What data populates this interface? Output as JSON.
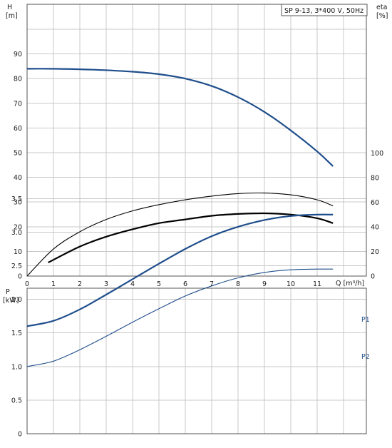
{
  "chart_data": [
    {
      "type": "line",
      "title": "SP 9-13, 3*400 V, 50Hz",
      "xlabel": "Q [m³/h]",
      "xlim": [
        0,
        12
      ],
      "x_ticks": [
        0,
        1,
        2,
        3,
        4,
        5,
        6,
        7,
        8,
        9,
        10,
        11
      ],
      "ylabel": "H",
      "ylabel_unit": "[m]",
      "ylim": [
        0,
        100
      ],
      "y_ticks": [
        0,
        10,
        20,
        30,
        40,
        50,
        60,
        70,
        80,
        90
      ],
      "y2label": "eta",
      "y2label_unit": "[%]",
      "y2lim": [
        0,
        100
      ],
      "y2_ticks": [
        0,
        20,
        40,
        60,
        80,
        100
      ],
      "grid": true,
      "series": [
        {
          "axis": "H",
          "color": "#1f4e8c",
          "x": [
            0,
            0.8,
            2,
            3,
            4,
            5,
            6,
            7,
            8,
            9,
            10,
            11,
            11.6
          ],
          "values": [
            84,
            84,
            83.8,
            83.4,
            82.8,
            81.8,
            80,
            77,
            72.5,
            66.5,
            59,
            50.5,
            44.5
          ]
        },
        {
          "axis": "eta",
          "color": "#000000",
          "x": [
            0,
            1,
            2,
            3,
            4,
            5,
            6,
            7,
            8,
            9,
            10,
            11,
            11.6
          ],
          "values": [
            0,
            22,
            36,
            46,
            53,
            58,
            62,
            65,
            67,
            67.5,
            66,
            62,
            57
          ]
        },
        {
          "axis": "eta",
          "color": "#000000",
          "x": [
            0.8,
            2,
            3,
            4,
            5,
            6,
            7,
            8,
            9,
            10,
            11,
            11.6
          ],
          "values": [
            11,
            24,
            32,
            38,
            43,
            46,
            49,
            50.5,
            51,
            50,
            47,
            43
          ]
        }
      ]
    },
    {
      "type": "line",
      "xlim": [
        0,
        12
      ],
      "ylabel": "P",
      "ylabel_unit": "[kW]",
      "ylim": [
        0,
        4
      ],
      "y_ticks": [
        "0",
        "0.5",
        "1.0",
        "1.5",
        "2.0",
        "2.5",
        "3.0",
        "3.5"
      ],
      "grid": true,
      "series": [
        {
          "name": "P1",
          "color": "#1f4e8c",
          "x": [
            0,
            1,
            2,
            3,
            4,
            5,
            6,
            7,
            8,
            9,
            10,
            11,
            11.6
          ],
          "values": [
            1.6,
            1.68,
            1.85,
            2.07,
            2.3,
            2.53,
            2.75,
            2.94,
            3.08,
            3.18,
            3.24,
            3.26,
            3.26
          ]
        },
        {
          "name": "P2",
          "color": "#1f4e8c",
          "x": [
            0,
            1,
            2,
            3,
            4,
            5,
            6,
            7,
            8,
            9,
            10,
            11,
            11.6
          ],
          "values": [
            1.0,
            1.08,
            1.25,
            1.45,
            1.66,
            1.86,
            2.05,
            2.2,
            2.32,
            2.4,
            2.44,
            2.45,
            2.45
          ]
        }
      ]
    }
  ]
}
